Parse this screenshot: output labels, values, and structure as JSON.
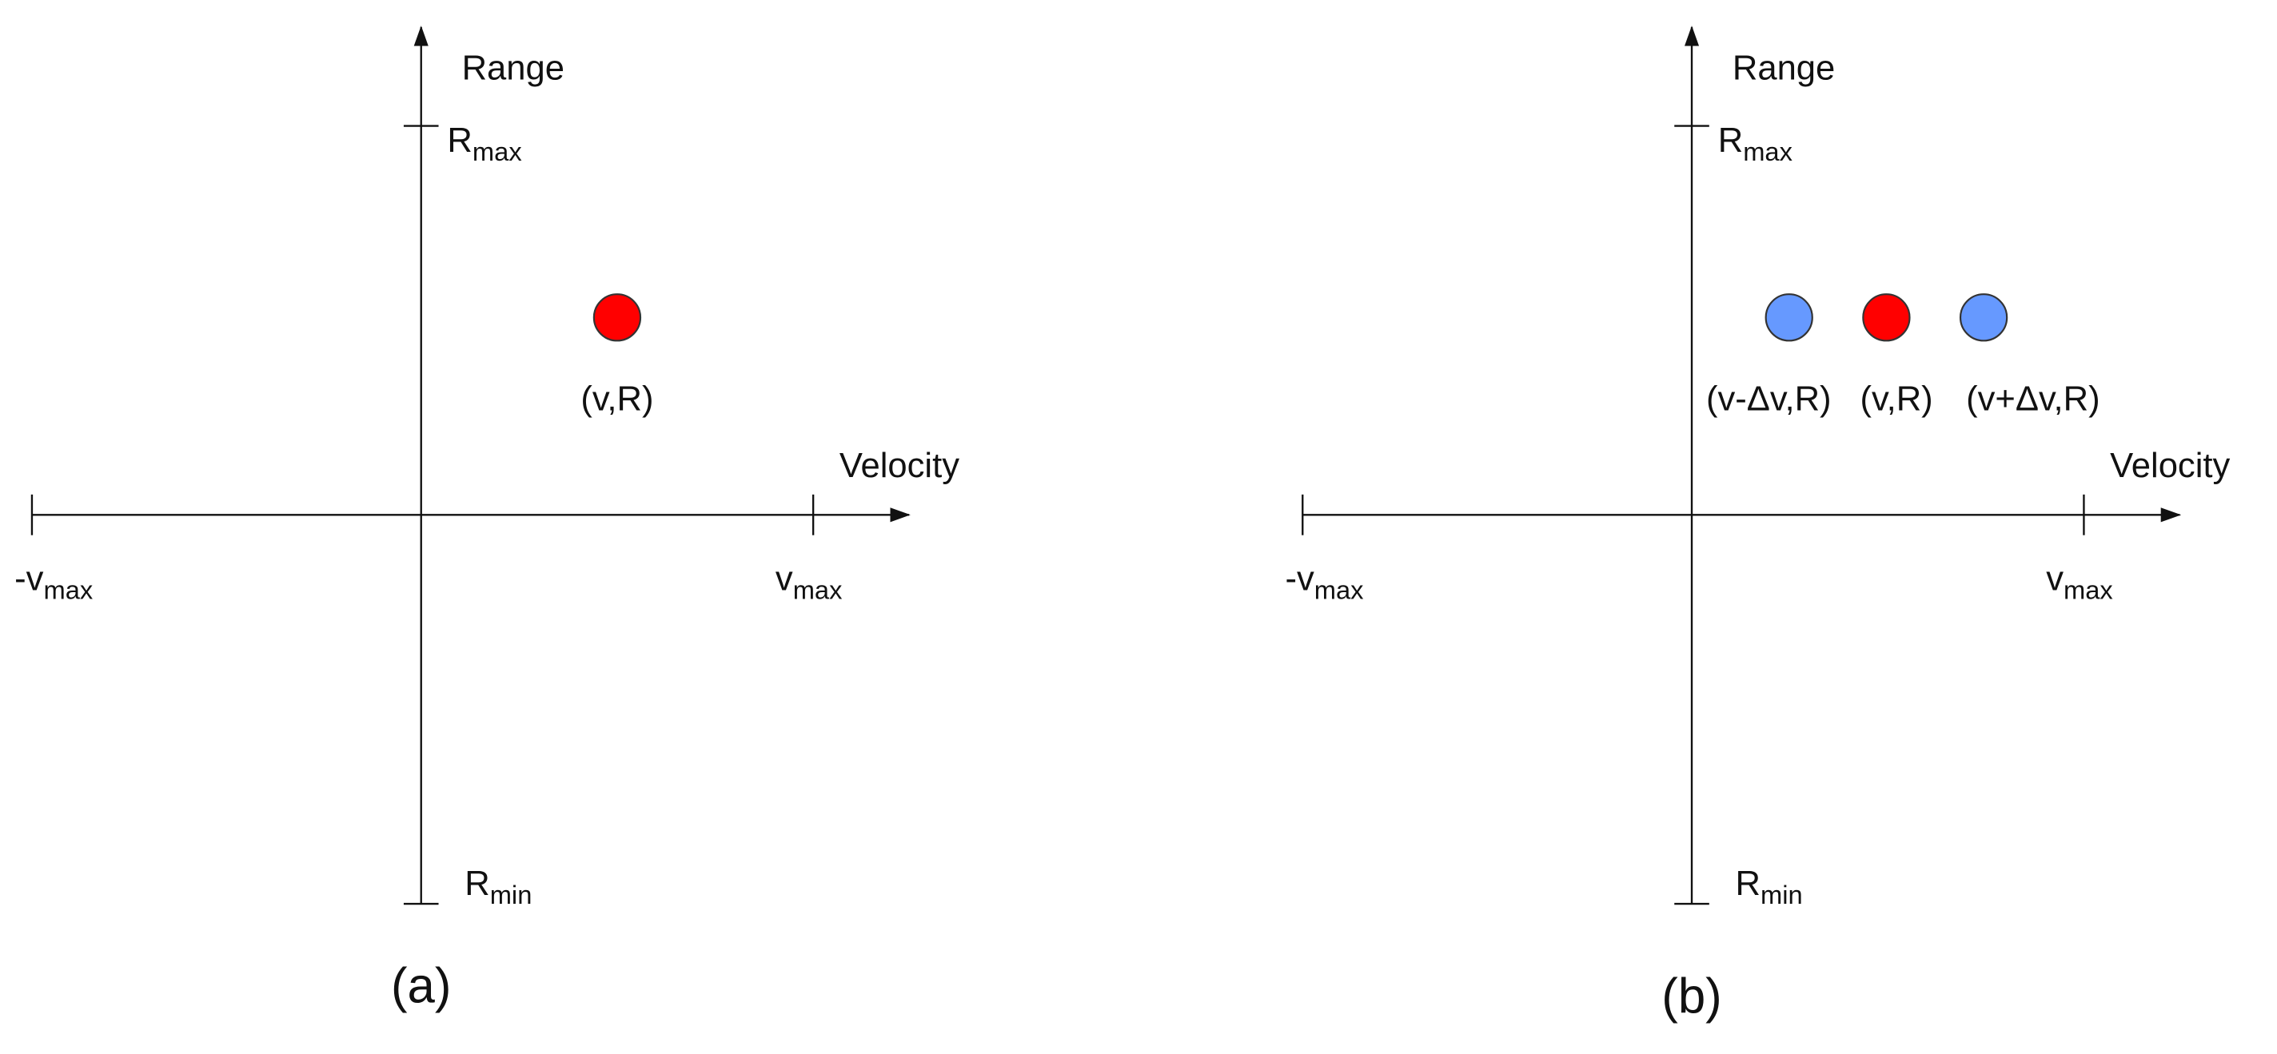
{
  "panels": [
    {
      "caption": "(a)",
      "y_axis_label": "Range",
      "x_axis_label": "Velocity",
      "y_max": {
        "base": "R",
        "sub": "max"
      },
      "y_min": {
        "base": "R",
        "sub": "min"
      },
      "x_min": {
        "base": "-v",
        "sub": "max"
      },
      "x_max": {
        "base": "v",
        "sub": "max"
      },
      "points": [
        {
          "label": "(v,R)",
          "color": "#ff0000"
        }
      ]
    },
    {
      "caption": "(b)",
      "y_axis_label": "Range",
      "x_axis_label": "Velocity",
      "y_max": {
        "base": "R",
        "sub": "max"
      },
      "y_min": {
        "base": "R",
        "sub": "min"
      },
      "x_min": {
        "base": "-v",
        "sub": "max"
      },
      "x_max": {
        "base": "v",
        "sub": "max"
      },
      "points": [
        {
          "label": "(v-Δv,R)",
          "color": "#6699ff"
        },
        {
          "label": "(v,R)",
          "color": "#ff0000"
        },
        {
          "label": "(v+Δv,R)",
          "color": "#6699ff"
        }
      ]
    }
  ]
}
